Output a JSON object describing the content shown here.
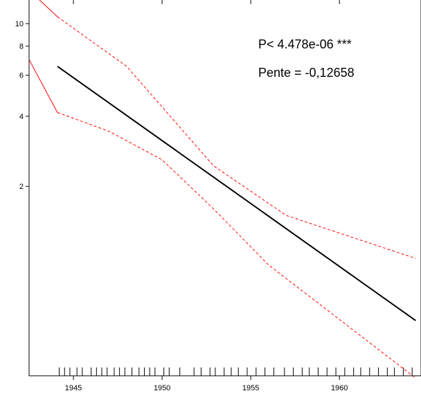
{
  "chart_data": {
    "type": "line",
    "title": "",
    "xlabel": "",
    "ylabel": "",
    "x_scale": "linear",
    "y_scale": "log",
    "xlim": [
      1942.5,
      1964.6
    ],
    "ylim": [
      0.307,
      12.63
    ],
    "x_ticks": [
      1945,
      1950,
      1955,
      1960
    ],
    "x_tick_labels": [
      "1945",
      "1950",
      "1955",
      "1960"
    ],
    "x_top_ticks": [
      1945,
      1950,
      1955,
      1960
    ],
    "y_ticks": [
      2,
      4,
      6,
      8,
      10
    ],
    "y_tick_labels": [
      "2",
      "4",
      "6",
      "8",
      "10"
    ],
    "grid": false,
    "legend": "none",
    "annotations": [
      "P< 4.478e-06 ***",
      "Pente = -0,12658"
    ],
    "series": [
      {
        "role": "fit",
        "color": "#000000",
        "style": "solid",
        "points": [
          [
            1944.1,
            6.55
          ],
          [
            1964.3,
            0.53
          ]
        ]
      },
      {
        "role": "upper-ci",
        "color": "#ff0000",
        "style": "dashed",
        "points": [
          [
            1944.1,
            10.7
          ],
          [
            1948.0,
            6.55
          ],
          [
            1952.9,
            2.45
          ],
          [
            1957.0,
            1.5
          ],
          [
            1964.3,
            0.98
          ]
        ]
      },
      {
        "role": "lower-ci",
        "color": "#ff0000",
        "style": "dashed",
        "points": [
          [
            1944.1,
            4.15
          ],
          [
            1947.0,
            3.45
          ],
          [
            1950.0,
            2.6
          ],
          [
            1952.9,
            1.6
          ],
          [
            1956.0,
            0.92
          ],
          [
            1964.3,
            0.3
          ]
        ]
      },
      {
        "role": "upper-ci-extrapolated",
        "color": "#ff0000",
        "style": "solid",
        "points": [
          [
            1942.5,
            13.9
          ],
          [
            1944.1,
            10.7
          ]
        ]
      },
      {
        "role": "lower-ci-extrapolated",
        "color": "#ff0000",
        "style": "solid",
        "points": [
          [
            1942.5,
            7.0
          ],
          [
            1944.1,
            4.15
          ]
        ]
      }
    ],
    "rug_x": [
      1944.2,
      1944.5,
      1944.8,
      1945.2,
      1945.5,
      1946.0,
      1946.3,
      1946.6,
      1946.9,
      1947.3,
      1947.6,
      1947.9,
      1948.3,
      1948.7,
      1949.0,
      1949.3,
      1949.6,
      1950.1,
      1950.4,
      1951.0,
      1951.8,
      1952.2,
      1952.7,
      1953.0,
      1953.5,
      1953.9,
      1954.3,
      1954.8,
      1955.3,
      1955.8,
      1956.3,
      1956.9,
      1957.4,
      1957.9,
      1958.3,
      1958.8,
      1959.3,
      1959.8,
      1960.3,
      1960.8,
      1961.2,
      1961.7,
      1962.2,
      1962.7,
      1963.1,
      1963.6,
      1964.1
    ]
  }
}
